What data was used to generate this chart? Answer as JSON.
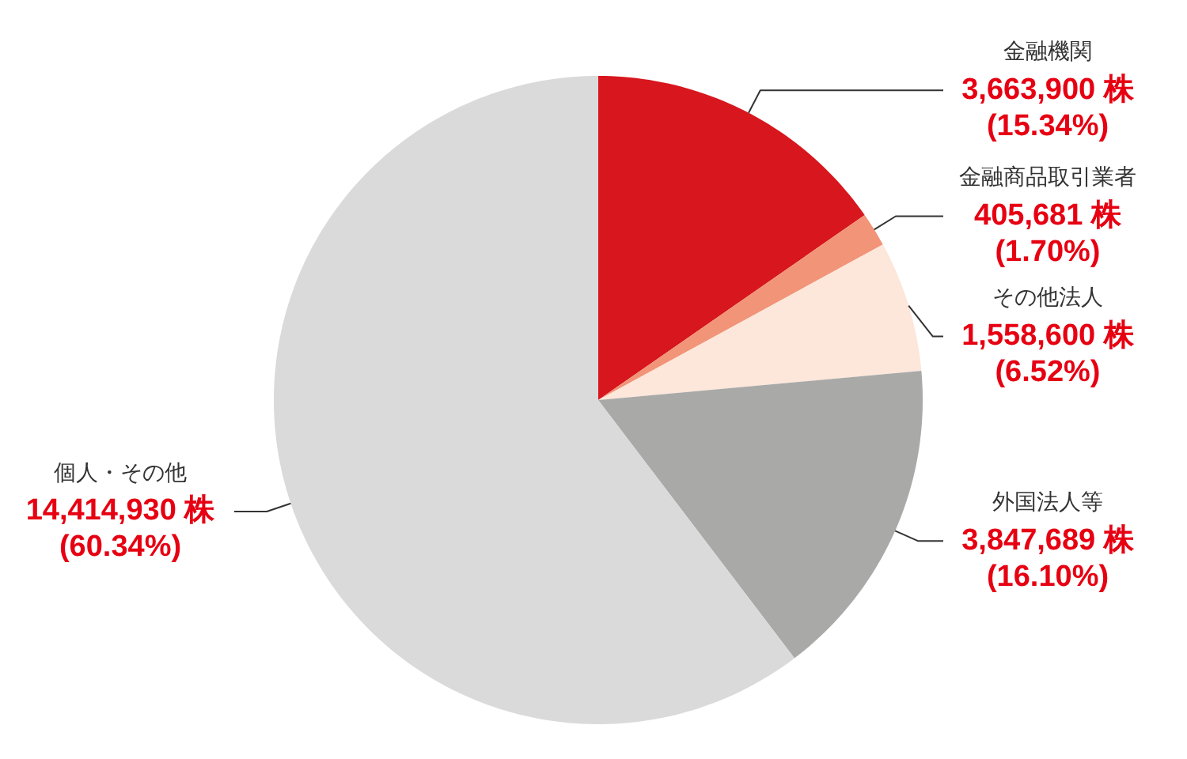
{
  "chart_data": {
    "type": "pie",
    "categories": [
      "金融機関",
      "金融商品取引業者",
      "その他法人",
      "外国法人等",
      "個人・その他"
    ],
    "values": [
      3663900,
      405681,
      1558600,
      3847689,
      14414930
    ],
    "colors": [
      "#d7161d",
      "#f19478",
      "#fde6da",
      "#a9a9a8",
      "#dadada"
    ],
    "value_labels": [
      "3,663,900 株\n(15.34%)",
      "405,681 株\n(1.70%)",
      "1,558,600 株\n(6.52%)",
      "3,847,689 株\n(16.10%)",
      "14,414,930 株\n(60.34%)"
    ],
    "legend": false
  }
}
